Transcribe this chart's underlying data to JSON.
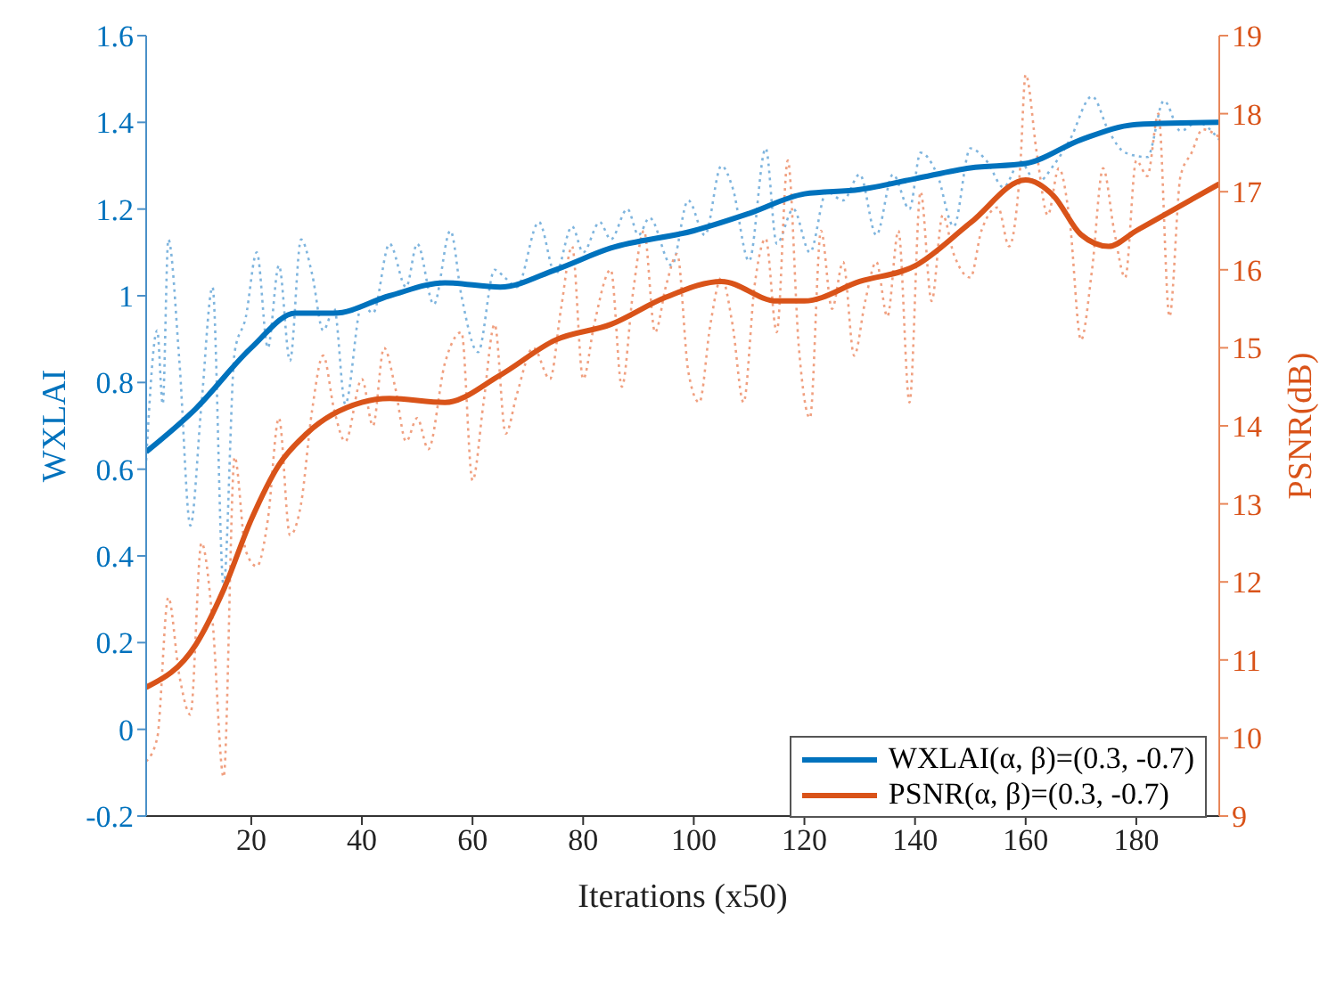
{
  "chart_data": {
    "type": "line",
    "xlabel": "Iterations (x50)",
    "ylabel": "WXLAI",
    "y2label": "PSNR(dB)",
    "xlim": [
      1,
      195
    ],
    "xticks": [
      20,
      40,
      60,
      80,
      100,
      120,
      140,
      160,
      180
    ],
    "ylim": [
      -0.2,
      1.6
    ],
    "yticks": [
      -0.2,
      0,
      0.2,
      0.4,
      0.6,
      0.8,
      1,
      1.2,
      1.4,
      1.6
    ],
    "y2lim": [
      9,
      19
    ],
    "y2ticks": [
      9,
      10,
      11,
      12,
      13,
      14,
      15,
      16,
      17,
      18,
      19
    ],
    "grid": false,
    "legend": "bottom right",
    "marker": "none",
    "series": [
      {
        "color": "#7fb5de",
        "line_style": "dotted",
        "x": [
          1,
          3,
          4,
          5,
          7,
          9,
          11,
          13,
          15,
          17,
          19,
          21,
          23,
          25,
          27,
          29,
          31,
          33,
          35,
          37,
          40,
          42,
          45,
          48,
          50,
          53,
          56,
          58,
          61,
          64,
          66,
          68,
          72,
          75,
          78,
          80,
          83,
          85,
          88,
          90,
          92,
          96,
          99,
          102,
          105,
          107,
          110,
          113,
          115,
          118,
          121,
          124,
          127,
          130,
          133,
          136,
          139,
          141,
          144,
          147,
          150,
          153,
          156,
          159,
          162,
          165,
          168,
          172,
          175,
          178,
          182,
          185,
          188,
          191,
          195
        ],
        "values": [
          0.62,
          0.92,
          0.75,
          1.13,
          0.85,
          0.47,
          0.75,
          1.02,
          0.33,
          0.87,
          0.95,
          1.1,
          0.88,
          1.07,
          0.85,
          1.13,
          1.05,
          0.92,
          0.97,
          0.75,
          0.98,
          0.96,
          1.12,
          1.02,
          1.12,
          0.98,
          1.15,
          1.0,
          0.87,
          1.06,
          1.04,
          1.02,
          1.17,
          1.05,
          1.16,
          1.1,
          1.17,
          1.13,
          1.2,
          1.14,
          1.18,
          1.07,
          1.22,
          1.14,
          1.3,
          1.25,
          1.08,
          1.34,
          1.12,
          1.2,
          1.1,
          1.24,
          1.22,
          1.28,
          1.14,
          1.28,
          1.2,
          1.33,
          1.28,
          1.16,
          1.34,
          1.31,
          1.25,
          1.31,
          1.26,
          1.3,
          1.36,
          1.46,
          1.38,
          1.33,
          1.32,
          1.45,
          1.38,
          1.4,
          1.36
        ]
      },
      {
        "color": "#f0a080",
        "line_style": "dotted",
        "axis": "y2",
        "x": [
          1,
          3,
          5,
          7,
          9,
          11,
          13,
          15,
          17,
          19,
          21,
          23,
          25,
          27,
          29,
          31,
          33,
          35,
          37,
          40,
          42,
          44,
          46,
          48,
          50,
          52,
          55,
          58,
          60,
          62,
          64,
          66,
          68,
          71,
          74,
          76,
          78,
          80,
          82,
          85,
          87,
          89,
          91,
          93,
          95,
          97,
          99,
          101,
          103,
          105,
          107,
          109,
          111,
          113,
          115,
          117,
          119,
          121,
          123,
          125,
          127,
          129,
          131,
          133,
          135,
          137,
          139,
          141,
          143,
          145,
          147,
          150,
          152,
          155,
          157,
          159,
          160,
          162,
          164,
          166,
          168,
          170,
          172,
          174,
          176,
          178,
          180,
          182,
          184,
          186,
          188,
          190,
          192,
          195
        ],
        "values": [
          9.7,
          10.0,
          11.8,
          10.8,
          10.3,
          12.5,
          11.5,
          9.5,
          13.6,
          12.4,
          12.2,
          12.8,
          14.1,
          12.6,
          13.0,
          14.2,
          14.9,
          14.2,
          13.8,
          14.6,
          14.0,
          15.0,
          14.5,
          13.8,
          14.1,
          13.7,
          14.8,
          15.2,
          13.3,
          14.3,
          15.3,
          13.9,
          14.4,
          15.0,
          14.6,
          15.5,
          16.3,
          14.6,
          15.3,
          16.0,
          14.5,
          15.7,
          16.5,
          15.2,
          15.8,
          16.2,
          14.7,
          14.3,
          15.3,
          15.9,
          15.3,
          14.3,
          15.8,
          16.4,
          15.2,
          17.4,
          15.0,
          14.1,
          16.5,
          15.5,
          16.1,
          14.9,
          15.6,
          16.1,
          15.4,
          16.5,
          14.3,
          17.0,
          15.6,
          16.7,
          16.2,
          15.9,
          16.5,
          16.8,
          16.3,
          17.3,
          18.5,
          17.5,
          16.7,
          17.3,
          16.6,
          15.1,
          16.0,
          17.3,
          16.5,
          15.9,
          17.4,
          17.2,
          18.0,
          15.4,
          17.2,
          17.5,
          17.8,
          17.7
        ]
      },
      {
        "name": "WXLAI(α, β)=(0.3, -0.7)",
        "color": "#0072bd",
        "line_style": "solid",
        "x": [
          1,
          10,
          20,
          28,
          35,
          45,
          55,
          65,
          75,
          85,
          100,
          110,
          120,
          130,
          140,
          150,
          160,
          170,
          180,
          195
        ],
        "values": [
          0.64,
          0.74,
          0.88,
          0.96,
          0.96,
          1.0,
          1.03,
          1.02,
          1.06,
          1.11,
          1.15,
          1.19,
          1.235,
          1.245,
          1.27,
          1.295,
          1.305,
          1.36,
          1.395,
          1.4
        ]
      },
      {
        "name": "PSNR(α, β)=(0.3, -0.7)",
        "color": "#d95319",
        "line_style": "solid",
        "axis": "y2",
        "x": [
          1,
          10,
          15,
          20,
          25,
          30,
          40,
          45,
          55,
          65,
          75,
          85,
          95,
          105,
          115,
          120,
          130,
          140,
          150,
          160,
          165,
          170,
          175,
          180,
          190,
          195
        ],
        "values": [
          10.65,
          11.2,
          11.9,
          12.8,
          13.5,
          13.9,
          14.3,
          14.35,
          14.3,
          14.65,
          15.1,
          15.3,
          15.65,
          15.85,
          15.6,
          15.6,
          15.85,
          16.05,
          16.6,
          17.15,
          16.95,
          16.45,
          16.3,
          16.5,
          16.9,
          17.1
        ]
      }
    ]
  }
}
